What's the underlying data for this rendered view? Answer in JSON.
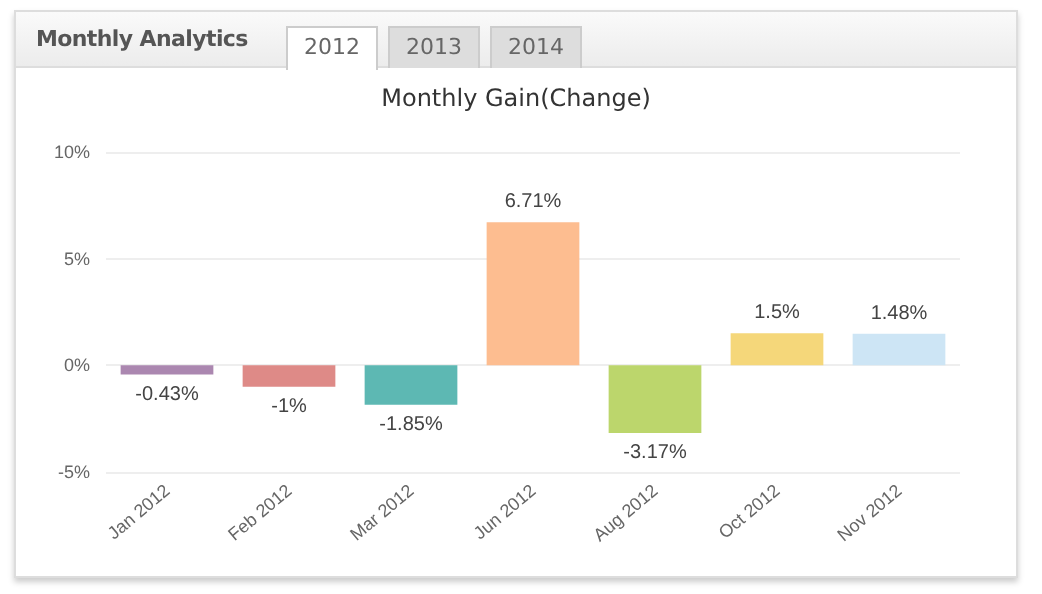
{
  "chart_data": {
    "type": "bar",
    "title": "Monthly Gain(Change)",
    "annotations": [
      "Monthly Analytics",
      "2012",
      "2013",
      "2014"
    ],
    "categories": [
      "Jan 2012",
      "Feb 2012",
      "Mar 2012",
      "Jun 2012",
      "Aug 2012",
      "Oct 2012",
      "Nov 2012"
    ],
    "values": [
      -0.43,
      -1,
      -1.85,
      6.71,
      -3.17,
      1.5,
      1.48
    ],
    "colors": [
      "#ab87b0",
      "#de8a87",
      "#5db8b3",
      "#fdbd90",
      "#bcd66c",
      "#f5d77a",
      "#cde5f5"
    ],
    "value_labels": [
      "-0.43%",
      "-1%",
      "-1.85%",
      "6.71%",
      "-3.17%",
      "1.5%",
      "1.48%"
    ],
    "ylim": [
      -5,
      10
    ],
    "yticks": [
      {
        "value": -5,
        "label": "-5%"
      },
      {
        "value": 0,
        "label": "0%"
      },
      {
        "value": 5,
        "label": "5%"
      },
      {
        "value": 10,
        "label": "10%"
      }
    ],
    "grid": "y"
  }
}
